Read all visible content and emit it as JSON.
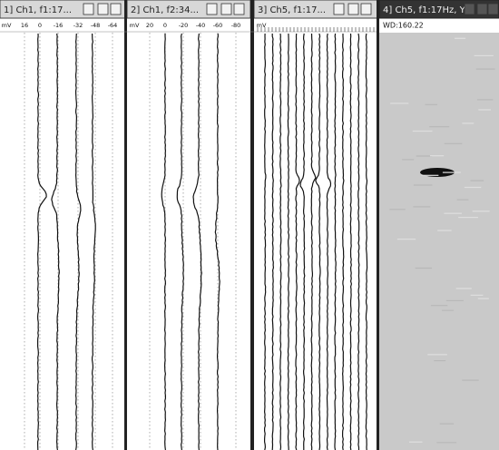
{
  "panels": [
    {
      "title": "1] Ch1, f1:17...",
      "scale": [
        "mV",
        "16",
        "0",
        "-16",
        "-32",
        "-48",
        "-64"
      ]
    },
    {
      "title": "2] Ch1, f2:34...",
      "scale": [
        "mV",
        "20",
        "0",
        "-20",
        "-40",
        "-60",
        "-80"
      ]
    },
    {
      "title": "3] Ch5, f1:17...",
      "scale": [
        "mV"
      ]
    },
    {
      "title": "4] Ch5, f1:17Hz, Y",
      "readout": "WD:160.22"
    }
  ]
}
